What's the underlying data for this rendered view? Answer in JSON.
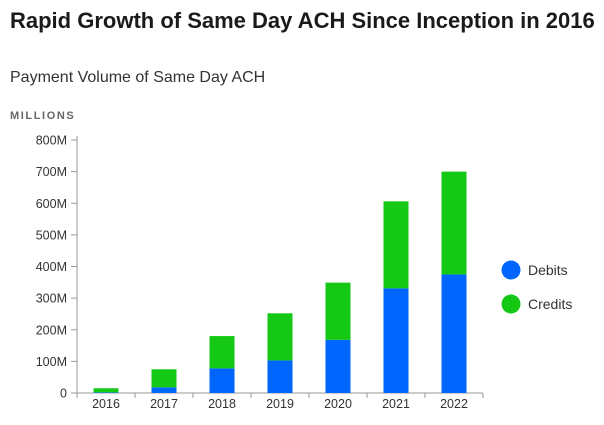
{
  "header": {
    "title": "Rapid Growth of Same Day ACH Since Inception in 2016",
    "subtitle": "Payment Volume of Same Day ACH"
  },
  "chart_data": {
    "type": "bar",
    "stacked": true,
    "unit_label": "MILLIONS",
    "categories": [
      "2016",
      "2017",
      "2018",
      "2019",
      "2020",
      "2021",
      "2022"
    ],
    "series": [
      {
        "name": "Debits",
        "color": "#0066ff",
        "values": [
          2,
          18,
          78,
          103,
          168,
          331,
          375
        ]
      },
      {
        "name": "Credits",
        "color": "#14c814",
        "values": [
          13,
          57,
          102,
          149,
          181,
          275,
          325
        ]
      }
    ],
    "y_ticks": [
      "0",
      "100M",
      "200M",
      "300M",
      "400M",
      "500M",
      "600M",
      "700M",
      "800M"
    ],
    "ylim": [
      0,
      800
    ],
    "legend_position": "right",
    "grid": false
  }
}
